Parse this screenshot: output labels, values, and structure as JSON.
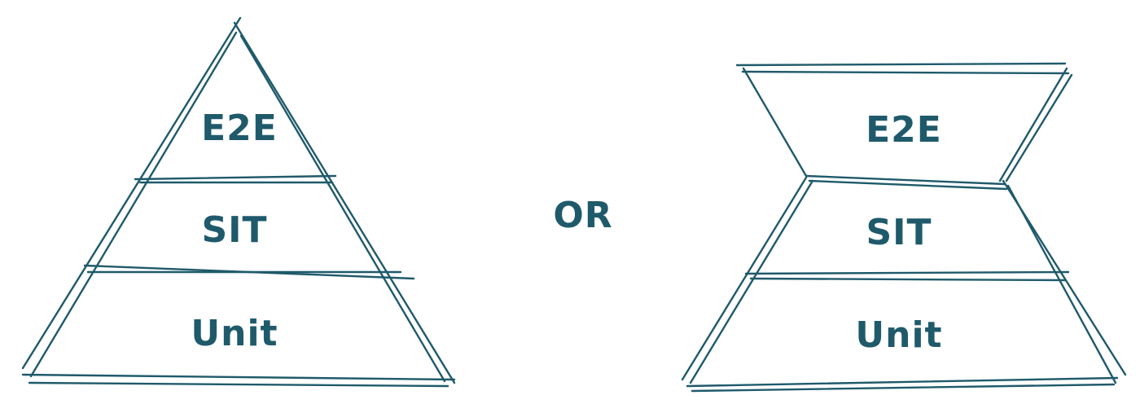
{
  "diagram": {
    "colors": {
      "stroke": "#1f5a6b",
      "text": "#1f5a6b",
      "background": "#ffffff"
    },
    "pyramid": {
      "layers": [
        {
          "label": "E2E"
        },
        {
          "label": "SIT"
        },
        {
          "label": "Unit"
        }
      ]
    },
    "separator": "OR",
    "hourglass": {
      "layers": [
        {
          "label": "E2E"
        },
        {
          "label": "SIT"
        },
        {
          "label": "Unit"
        }
      ]
    }
  }
}
